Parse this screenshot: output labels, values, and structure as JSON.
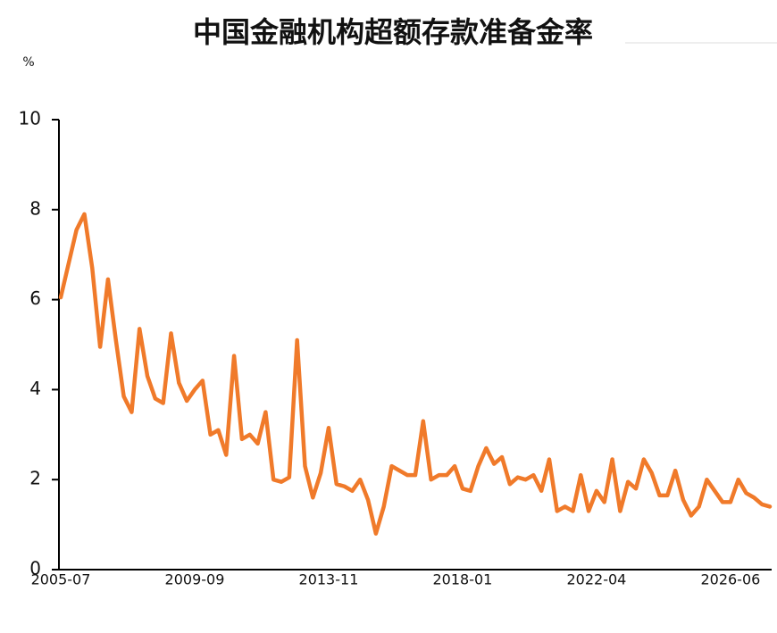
{
  "chart_data": {
    "type": "line",
    "title": "中国金融机构超额存款准备金率",
    "y_unit": "%",
    "categories": [
      "2005-07",
      null,
      null,
      null,
      null,
      null,
      null,
      null,
      null,
      null,
      null,
      null,
      null,
      null,
      null,
      null,
      null,
      "2009-09",
      null,
      null,
      null,
      null,
      null,
      null,
      null,
      null,
      null,
      null,
      null,
      null,
      null,
      null,
      null,
      null,
      "2013-11",
      null,
      null,
      null,
      null,
      null,
      null,
      null,
      null,
      null,
      null,
      null,
      null,
      null,
      null,
      null,
      null,
      "2018-01",
      null,
      null,
      null,
      null,
      null,
      null,
      null,
      null,
      null,
      null,
      null,
      null,
      null,
      null,
      null,
      null,
      "2022-04",
      null,
      null,
      null,
      null,
      null,
      null,
      null,
      null,
      null,
      null,
      null,
      null,
      null,
      null,
      null,
      null,
      "2026-06",
      null,
      null,
      null,
      null,
      null
    ],
    "series": [
      {
        "name": "超额存款准备金率",
        "color": "#f07a2a",
        "values": [
          6.05,
          6.8,
          7.55,
          7.9,
          6.7,
          4.95,
          6.45,
          5.1,
          3.85,
          3.5,
          5.35,
          4.3,
          3.8,
          3.7,
          5.25,
          4.15,
          3.75,
          4.0,
          4.2,
          3.0,
          3.1,
          2.55,
          4.75,
          2.9,
          3.0,
          2.8,
          3.5,
          2.0,
          1.95,
          2.05,
          5.1,
          2.3,
          1.6,
          2.15,
          3.15,
          1.9,
          1.85,
          1.75,
          2.0,
          1.55,
          0.8,
          1.4,
          2.3,
          2.2,
          2.1,
          2.1,
          3.3,
          2.0,
          2.1,
          2.1,
          2.3,
          1.8,
          1.75,
          2.3,
          2.7,
          2.35,
          2.5,
          1.9,
          2.05,
          2.0,
          2.1,
          1.75,
          2.45,
          1.3,
          1.4,
          1.3,
          2.1,
          1.3,
          1.75,
          1.5,
          2.45,
          1.3,
          1.95,
          1.8,
          2.45,
          2.15,
          1.65,
          1.65,
          2.2,
          1.55,
          1.2,
          1.4,
          2.0,
          1.75,
          1.5,
          1.5,
          2.0,
          1.7,
          1.6,
          1.45,
          1.4
        ]
      }
    ],
    "ylim": [
      0,
      10
    ],
    "yticks": [
      0,
      2,
      4,
      6,
      8,
      10
    ],
    "grid": false
  }
}
